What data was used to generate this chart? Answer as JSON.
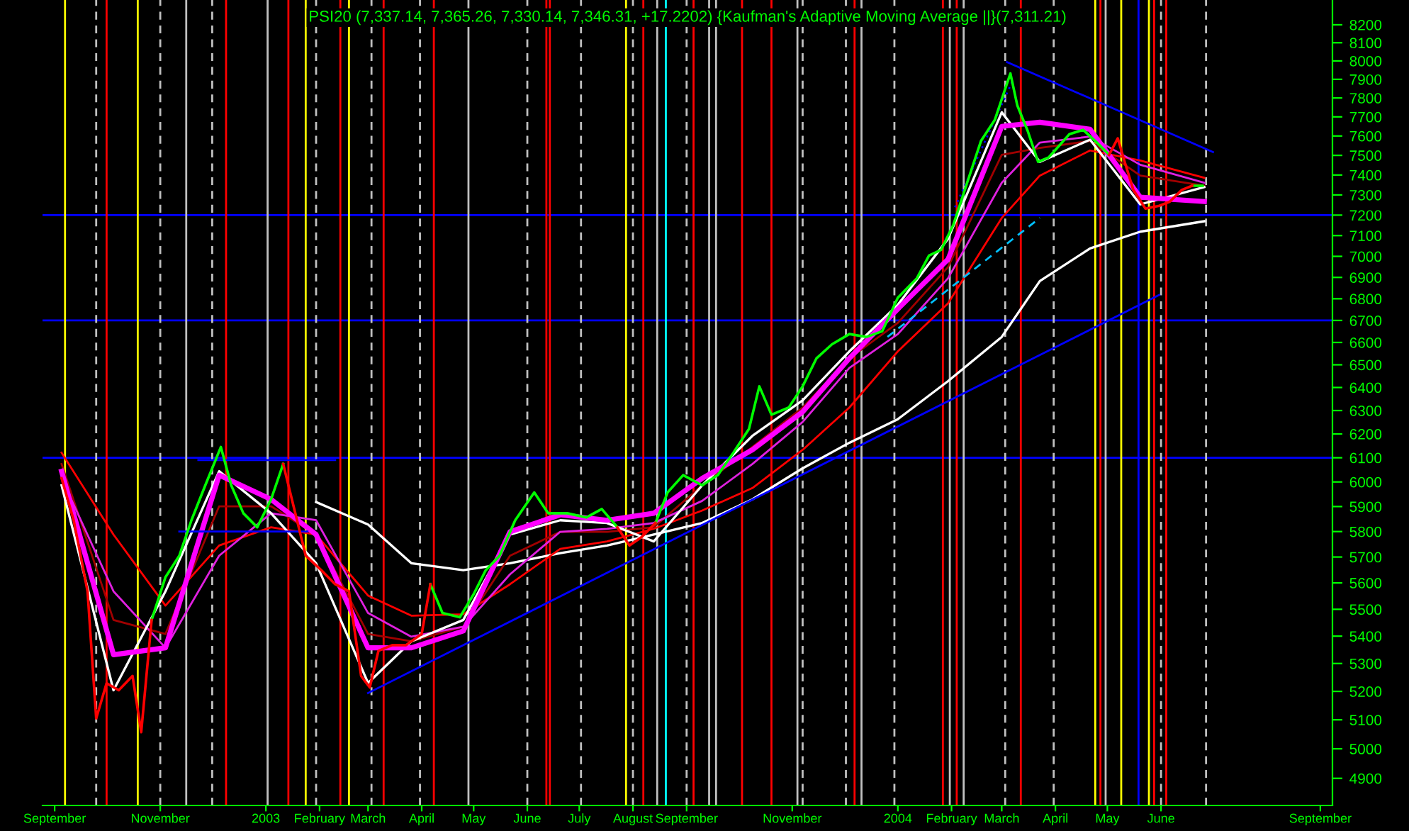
{
  "chart_data": {
    "type": "line",
    "title": "PSI20 (7,337.14, 7,365.26, 7,330.14, 7,346.31, +17.2202) {Kaufman's Adaptive Moving Average ||}(7,311.21)",
    "log": true,
    "ylim": [
      4810,
      8340
    ],
    "yticks": [
      4900,
      5000,
      5100,
      5200,
      5300,
      5400,
      5500,
      5600,
      5700,
      5800,
      5900,
      6000,
      6100,
      6200,
      6300,
      6400,
      6500,
      6600,
      6700,
      6800,
      6900,
      7000,
      7100,
      7200,
      7300,
      7400,
      7500,
      7600,
      7700,
      7800,
      7900,
      8000,
      8100,
      8200
    ],
    "xlim": [
      "2002-08-25",
      "2004-09-08"
    ],
    "xticks": [
      {
        "value": "2002-09-01",
        "label": "September"
      },
      {
        "value": "2002-11-01",
        "label": "November"
      },
      {
        "value": "2003-01-01",
        "label": "2003"
      },
      {
        "value": "2003-02-01",
        "label": "February"
      },
      {
        "value": "2003-03-01",
        "label": "March"
      },
      {
        "value": "2003-04-01",
        "label": "April"
      },
      {
        "value": "2003-05-01",
        "label": "May"
      },
      {
        "value": "2003-06-01",
        "label": "June"
      },
      {
        "value": "2003-07-01",
        "label": "July"
      },
      {
        "value": "2003-08-01",
        "label": "August"
      },
      {
        "value": "2003-09-01",
        "label": "September"
      },
      {
        "value": "2003-11-01",
        "label": "November"
      },
      {
        "value": "2004-01-01",
        "label": "2004"
      },
      {
        "value": "2004-02-01",
        "label": "February"
      },
      {
        "value": "2004-03-01",
        "label": "March"
      },
      {
        "value": "2004-04-01",
        "label": "April"
      },
      {
        "value": "2004-05-01",
        "label": "May"
      },
      {
        "value": "2004-06-01",
        "label": "June"
      },
      {
        "value": "2004-09-01",
        "label": "September"
      }
    ],
    "grid": false,
    "legend": false,
    "x": [
      "2002-09-05",
      "2002-10-05",
      "2002-11-04",
      "2002-12-05",
      "2003-01-04",
      "2003-01-30",
      "2003-03-01",
      "2003-03-26",
      "2003-04-25",
      "2003-05-22",
      "2003-06-20",
      "2003-07-17",
      "2003-08-13",
      "2003-09-10",
      "2003-10-09",
      "2003-11-07",
      "2003-12-04",
      "2004-01-01",
      "2004-01-30",
      "2004-03-01",
      "2004-03-23",
      "2004-04-21",
      "2004-05-20",
      "2004-06-26"
    ],
    "series": [
      {
        "x": [
          "2002-10-27",
          "2002-11-04",
          "2002-11-12",
          "2002-11-19",
          "2002-11-27",
          "2002-12-06",
          "2002-12-12",
          "2002-12-19",
          "2002-12-27",
          "2003-01-04",
          "2003-01-11",
          "2003-01-17",
          "2003-01-24",
          "2003-02-02",
          "2003-02-10",
          "2003-02-18",
          "2003-02-25",
          "2003-03-02",
          "2003-03-07",
          "2003-03-15",
          "2003-03-23",
          "2003-04-01",
          "2003-04-06",
          "2003-04-13",
          "2003-04-23",
          "2003-05-01",
          "2003-05-08",
          "2003-05-16",
          "2003-05-25",
          "2003-06-05",
          "2003-06-13",
          "2003-06-24",
          "2003-07-05",
          "2003-07-14",
          "2003-07-23",
          "2003-07-30",
          "2003-08-06",
          "2003-08-14",
          "2003-08-21",
          "2003-08-30",
          "2003-09-10",
          "2003-09-19",
          "2003-09-28",
          "2003-10-07",
          "2003-10-13",
          "2003-10-20",
          "2003-10-30",
          "2003-11-07",
          "2003-11-15",
          "2003-11-24",
          "2003-12-04",
          "2003-12-14",
          "2003-12-23",
          "2004-01-01",
          "2004-01-12",
          "2004-01-19",
          "2004-01-26",
          "2004-02-02",
          "2004-02-10",
          "2004-02-18",
          "2004-02-26",
          "2004-03-06",
          "2004-03-10",
          "2004-03-16",
          "2004-03-22",
          "2004-03-28",
          "2004-04-02",
          "2004-04-09",
          "2004-04-17",
          "2004-04-24",
          "2004-05-02",
          "2004-05-07",
          "2004-05-11",
          "2004-05-16",
          "2004-05-23",
          "2004-05-31",
          "2004-06-06",
          "2004-06-13",
          "2004-06-19",
          "2004-06-25"
        ],
        "color": "#00ff00",
        "values": [
          5460,
          5622,
          5705,
          5845,
          5986,
          6145,
          5986,
          5873,
          5817,
          5929,
          6074,
          null,
          null,
          null,
          null,
          null,
          null,
          null,
          null,
          null,
          null,
          null,
          5595,
          5486,
          5470,
          5557,
          5649,
          5705,
          5845,
          5957,
          5873,
          5873,
          5856,
          5890,
          5817,
          null,
          null,
          5834,
          5957,
          6028,
          5986,
          6028,
          6121,
          6221,
          6405,
          6282,
          6313,
          6405,
          6529,
          6592,
          6638,
          6625,
          6651,
          6805,
          6896,
          7004,
          7031,
          7152,
          7361,
          7574,
          7684,
          7932,
          7760,
          7626,
          7467,
          7489,
          7538,
          7609,
          7632,
          7574,
          7503,
          null,
          null,
          null,
          null,
          null,
          null,
          null,
          7346,
          7346
        ]
      },
      {
        "x": [
          "2002-09-05",
          "2002-09-12",
          "2002-09-20",
          "2002-09-25",
          "2002-10-01",
          "2002-10-08",
          "2002-10-16",
          "2002-10-21",
          "2002-10-27",
          "2002-11-04",
          "2002-11-12",
          "2002-11-19",
          "2002-11-27",
          "2002-12-06",
          "2002-12-12",
          "2002-12-19",
          "2002-12-27",
          "2003-01-04",
          "2003-01-11",
          "2003-01-17",
          "2003-01-24",
          "2003-02-02",
          "2003-02-10",
          "2003-02-18",
          "2003-02-25",
          "2003-03-02",
          "2003-03-07",
          "2003-03-15",
          "2003-03-23",
          "2003-04-01",
          "2003-04-06",
          "2003-04-13",
          "2003-04-23",
          "2003-05-01",
          "2003-05-08",
          "2003-05-16",
          "2003-05-25",
          "2003-06-05",
          "2003-06-13",
          "2003-06-24",
          "2003-07-05",
          "2003-07-14",
          "2003-07-23",
          "2003-07-30",
          "2003-08-06",
          "2003-08-14",
          "2003-08-21",
          "2003-08-30",
          "2003-09-10",
          "2003-09-19",
          "2003-09-28",
          "2003-10-07",
          "2003-10-13",
          "2003-10-20",
          "2003-10-30",
          "2003-11-07",
          "2003-11-15",
          "2003-11-24",
          "2003-12-04",
          "2003-12-14",
          "2003-12-23",
          "2004-01-01",
          "2004-01-12",
          "2004-01-19",
          "2004-01-26",
          "2004-02-02",
          "2004-02-10",
          "2004-02-18",
          "2004-02-26",
          "2004-03-06",
          "2004-03-10",
          "2004-03-16",
          "2004-03-22",
          "2004-03-28",
          "2004-04-02",
          "2004-04-09",
          "2004-04-17",
          "2004-04-24",
          "2004-05-02",
          "2004-05-07",
          "2004-05-11",
          "2004-05-16",
          "2004-05-23",
          "2004-05-31",
          "2004-06-06",
          "2004-06-13",
          "2004-06-19"
        ],
        "color": "#ff0000",
        "values": [
          6015,
          5845,
          5568,
          5105,
          5229,
          5204,
          5255,
          5057,
          5460,
          null,
          null,
          null,
          null,
          null,
          null,
          null,
          null,
          null,
          6074,
          5901,
          5705,
          5649,
          5595,
          5568,
          5255,
          5214,
          5346,
          5367,
          5367,
          5408,
          5595,
          null,
          null,
          null,
          null,
          null,
          null,
          null,
          null,
          null,
          null,
          null,
          5817,
          5745,
          5778,
          5834,
          null,
          null,
          null,
          null,
          null,
          null,
          null,
          null,
          null,
          null,
          null,
          null,
          null,
          null,
          null,
          null,
          null,
          null,
          null,
          null,
          null,
          null,
          null,
          null,
          null,
          null,
          null,
          null,
          null,
          null,
          null,
          null,
          7503,
          7588,
          7467,
          7325,
          7232,
          7246,
          7266,
          7325,
          7346
        ]
      },
      {
        "color": "#ffffff",
        "values": [
          null,
          null,
          null,
          null,
          null,
          5918,
          5828,
          5676,
          5649,
          5676,
          5715,
          5745,
          5788,
          5834,
          5929,
          6056,
          6163,
          6263,
          6428,
          6625,
          6883,
          7038,
          7119,
          7170
        ]
      },
      {
        "color": "#ff0000",
        "values": [
          6121,
          5788,
          5514,
          5745,
          5817,
          5788,
          5552,
          5476,
          5481,
          5595,
          5732,
          5761,
          5811,
          5884,
          5975,
          6133,
          6313,
          6560,
          6779,
          7186,
          7397,
          7525,
          7474,
          7386
        ]
      },
      {
        "color": "#a00000",
        "values": [
          6074,
          5460,
          5408,
          5901,
          5901,
          5788,
          5408,
          5381,
          5435,
          5705,
          5799,
          5799,
          5817,
          5986,
          6145,
          6313,
          6529,
          6689,
          6949,
          7503,
          7538,
          7574,
          7397,
          7346
        ]
      },
      {
        "color": "#e020e0",
        "values": [
          6015,
          5568,
          5357,
          5705,
          5873,
          5845,
          5486,
          5398,
          5435,
          5633,
          5799,
          5811,
          5834,
          5923,
          6074,
          6251,
          6486,
          6638,
          6896,
          7361,
          7566,
          7597,
          7452,
          7361
        ]
      },
      {
        "color": "#ffffff",
        "values": [
          5986,
          5204,
          5568,
          6044,
          5873,
          5676,
          5230,
          5381,
          5460,
          5788,
          5845,
          5834,
          5761,
          5986,
          6192,
          6344,
          6560,
          6772,
          7085,
          7724,
          7467,
          7581,
          7253,
          7339
        ]
      },
      {
        "color": "#ff00ff",
        "values": [
          6044,
          5332,
          5357,
          6028,
          5929,
          5788,
          5357,
          5357,
          5419,
          5799,
          5867,
          5845,
          5873,
          6015,
          6133,
          6294,
          6529,
          6753,
          6986,
          7650,
          7672,
          7635,
          7289,
          7267
        ]
      },
      {
        "color": "#0000ff",
        "x": [
          "2003-03-01",
          "2004-05-31"
        ],
        "values": [
          5194,
          6818
        ]
      },
      {
        "color": "#0000ff",
        "x": [
          "2004-03-04",
          "2004-07-01"
        ],
        "values": [
          7994,
          7517
        ]
      },
      {
        "color": "#0000ff",
        "x": [
          "2002-11-23",
          "2003-02-10"
        ],
        "values": [
          6090,
          6090
        ]
      },
      {
        "color": "#0000ff",
        "x": [
          "2002-11-12",
          "2003-01-25"
        ],
        "values": [
          5800,
          5800
        ]
      },
      {
        "color": "#00c0ff",
        "line_style": "dashed",
        "x": [
          "2003-12-26",
          "2004-03-23"
        ],
        "values": [
          6625,
          7186
        ]
      },
      {
        "color": "#0000ff",
        "line_style": "dotted",
        "x": [
          "2004-02-03",
          "2004-03-07"
        ],
        "values": [
          7239,
          7887
        ]
      }
    ],
    "ref_lines": [
      {
        "axis": "y",
        "value": 6100,
        "color": "#0000ff"
      },
      {
        "axis": "y",
        "value": 6700,
        "color": "#0000ff"
      },
      {
        "axis": "y",
        "value": 7200,
        "color": "#0000ff"
      },
      {
        "axis": "x",
        "value": "2002-09-07",
        "color": "#ffff00"
      },
      {
        "axis": "x",
        "value": "2002-09-25",
        "color": "#c0c0c0",
        "line_style": "dashed"
      },
      {
        "axis": "x",
        "value": "2002-10-01",
        "color": "#ff0000"
      },
      {
        "axis": "x",
        "value": "2002-10-19",
        "color": "#ffff00"
      },
      {
        "axis": "x",
        "value": "2002-11-01",
        "color": "#c0c0c0",
        "line_style": "dashed"
      },
      {
        "axis": "x",
        "value": "2002-11-16",
        "color": "#c0c0c0"
      },
      {
        "axis": "x",
        "value": "2002-12-01",
        "color": "#c0c0c0",
        "line_style": "dashed"
      },
      {
        "axis": "x",
        "value": "2002-12-09",
        "color": "#ff0000"
      },
      {
        "axis": "x",
        "value": "2003-01-02",
        "color": "#c0c0c0"
      },
      {
        "axis": "x",
        "value": "2003-01-14",
        "color": "#ff0000"
      },
      {
        "axis": "x",
        "value": "2003-01-24",
        "color": "#ffff00"
      },
      {
        "axis": "x",
        "value": "2003-01-30",
        "color": "#c0c0c0",
        "line_style": "dashed"
      },
      {
        "axis": "x",
        "value": "2003-02-13",
        "color": "#ff0000"
      },
      {
        "axis": "x",
        "value": "2003-02-18",
        "color": "#ffff00"
      },
      {
        "axis": "x",
        "value": "2003-03-03",
        "color": "#c0c0c0",
        "line_style": "dashed"
      },
      {
        "axis": "x",
        "value": "2003-03-10",
        "color": "#ff0000"
      },
      {
        "axis": "x",
        "value": "2003-03-31",
        "color": "#c0c0c0",
        "line_style": "dashed"
      },
      {
        "axis": "x",
        "value": "2003-04-08",
        "color": "#ff0000"
      },
      {
        "axis": "x",
        "value": "2003-04-28",
        "color": "#c0c0c0"
      },
      {
        "axis": "x",
        "value": "2003-06-01",
        "color": "#c0c0c0",
        "line_style": "dashed"
      },
      {
        "axis": "x",
        "value": "2003-06-12",
        "color": "#ff0000"
      },
      {
        "axis": "x",
        "value": "2003-06-14",
        "color": "#ff0000"
      },
      {
        "axis": "x",
        "value": "2003-07-02",
        "color": "#c0c0c0",
        "line_style": "dashed"
      },
      {
        "axis": "x",
        "value": "2003-07-28",
        "color": "#ffff00"
      },
      {
        "axis": "x",
        "value": "2003-08-01",
        "color": "#c0c0c0",
        "line_style": "dashed"
      },
      {
        "axis": "x",
        "value": "2003-08-07",
        "color": "#ff0000"
      },
      {
        "axis": "x",
        "value": "2003-08-15",
        "color": "#c0c0c0"
      },
      {
        "axis": "x",
        "value": "2003-08-20",
        "color": "#00ffff"
      },
      {
        "axis": "x",
        "value": "2003-09-01",
        "color": "#c0c0c0",
        "line_style": "dashed"
      },
      {
        "axis": "x",
        "value": "2003-09-05",
        "color": "#ff0000"
      },
      {
        "axis": "x",
        "value": "2003-09-14",
        "color": "#c0c0c0"
      },
      {
        "axis": "x",
        "value": "2003-09-18",
        "color": "#c0c0c0"
      },
      {
        "axis": "x",
        "value": "2003-10-03",
        "color": "#ff0000"
      },
      {
        "axis": "x",
        "value": "2003-10-20",
        "color": "#ff0000"
      },
      {
        "axis": "x",
        "value": "2003-11-04",
        "color": "#c0c0c0"
      },
      {
        "axis": "x",
        "value": "2003-11-07",
        "color": "#c0c0c0",
        "line_style": "dashed"
      },
      {
        "axis": "x",
        "value": "2003-12-02",
        "color": "#c0c0c0",
        "line_style": "dashed"
      },
      {
        "axis": "x",
        "value": "2003-12-07",
        "color": "#ff0000"
      },
      {
        "axis": "x",
        "value": "2003-12-11",
        "color": "#c0c0c0"
      },
      {
        "axis": "x",
        "value": "2003-12-30",
        "color": "#c0c0c0",
        "line_style": "dashed"
      },
      {
        "axis": "x",
        "value": "2004-01-27",
        "color": "#ff0000"
      },
      {
        "axis": "x",
        "value": "2004-01-31",
        "color": "#c0c0c0"
      },
      {
        "axis": "x",
        "value": "2004-02-04",
        "color": "#ff0000"
      },
      {
        "axis": "x",
        "value": "2004-02-08",
        "color": "#c0c0c0"
      },
      {
        "axis": "x",
        "value": "2004-03-03",
        "color": "#c0c0c0",
        "line_style": "dashed"
      },
      {
        "axis": "x",
        "value": "2004-03-12",
        "color": "#ff0000"
      },
      {
        "axis": "x",
        "value": "2004-03-31",
        "color": "#c0c0c0",
        "line_style": "dashed"
      },
      {
        "axis": "x",
        "value": "2004-04-24",
        "color": "#ffff00"
      },
      {
        "axis": "x",
        "value": "2004-04-27",
        "color": "#ff0000"
      },
      {
        "axis": "x",
        "value": "2004-04-30",
        "color": "#c0c0c0"
      },
      {
        "axis": "x",
        "value": "2004-05-09",
        "color": "#ffff00"
      },
      {
        "axis": "x",
        "value": "2004-05-19",
        "color": "#0000ff"
      },
      {
        "axis": "x",
        "value": "2004-05-25",
        "color": "#ffff00"
      },
      {
        "axis": "x",
        "value": "2004-05-28",
        "color": "#ff0000"
      },
      {
        "axis": "x",
        "value": "2004-06-01",
        "color": "#c0c0c0",
        "line_style": "dashed"
      },
      {
        "axis": "x",
        "value": "2004-06-04",
        "color": "#ff0000"
      },
      {
        "axis": "x",
        "value": "2004-06-27",
        "color": "#c0c0c0",
        "line_style": "dashed"
      }
    ]
  }
}
